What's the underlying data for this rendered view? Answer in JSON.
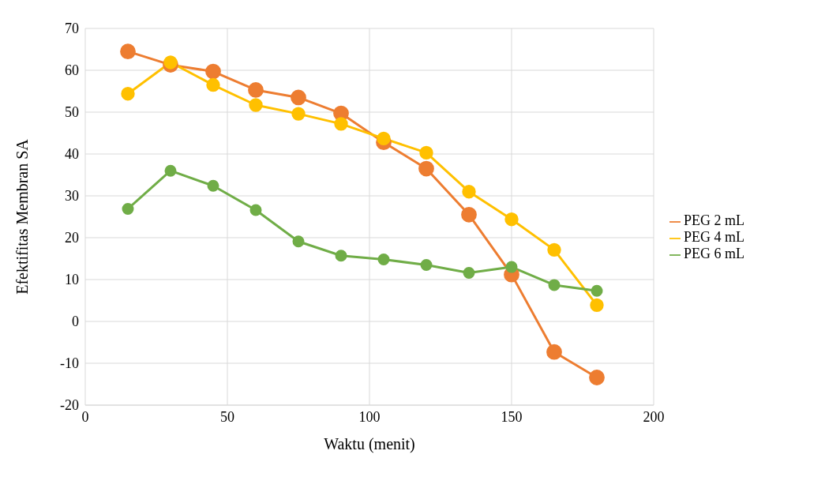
{
  "chart_data": {
    "type": "line",
    "xlabel": "Waktu (menit)",
    "ylabel": "Efektifitas Membran SA",
    "x": [
      15,
      30,
      45,
      60,
      75,
      90,
      105,
      120,
      135,
      150,
      165,
      180
    ],
    "series": [
      {
        "name": "PEG 2 mL",
        "color": "#ed7d31",
        "values": [
          64.5,
          61.3,
          59.7,
          55.3,
          53.5,
          49.7,
          42.8,
          36.5,
          25.5,
          11.2,
          -7.3,
          -13.4
        ]
      },
      {
        "name": "PEG 4 mL",
        "color": "#ffc000",
        "values": [
          54.4,
          61.9,
          56.5,
          51.7,
          49.6,
          47.2,
          43.7,
          40.3,
          31.0,
          24.4,
          17.1,
          3.9
        ]
      },
      {
        "name": "PEG 6 mL",
        "color": "#70ad47",
        "values": [
          26.9,
          36.0,
          32.4,
          26.6,
          19.1,
          15.7,
          14.8,
          13.5,
          11.6,
          13.0,
          8.7,
          7.3
        ]
      }
    ],
    "xlim": [
      0,
      200
    ],
    "xticks": [
      0,
      50,
      100,
      150,
      200
    ],
    "ylim": [
      -20,
      70
    ],
    "yticks": [
      -20,
      -10,
      0,
      10,
      20,
      30,
      40,
      50,
      60,
      70
    ],
    "grid": true,
    "legend": "right",
    "marker": "circle",
    "line_style": "solid"
  }
}
